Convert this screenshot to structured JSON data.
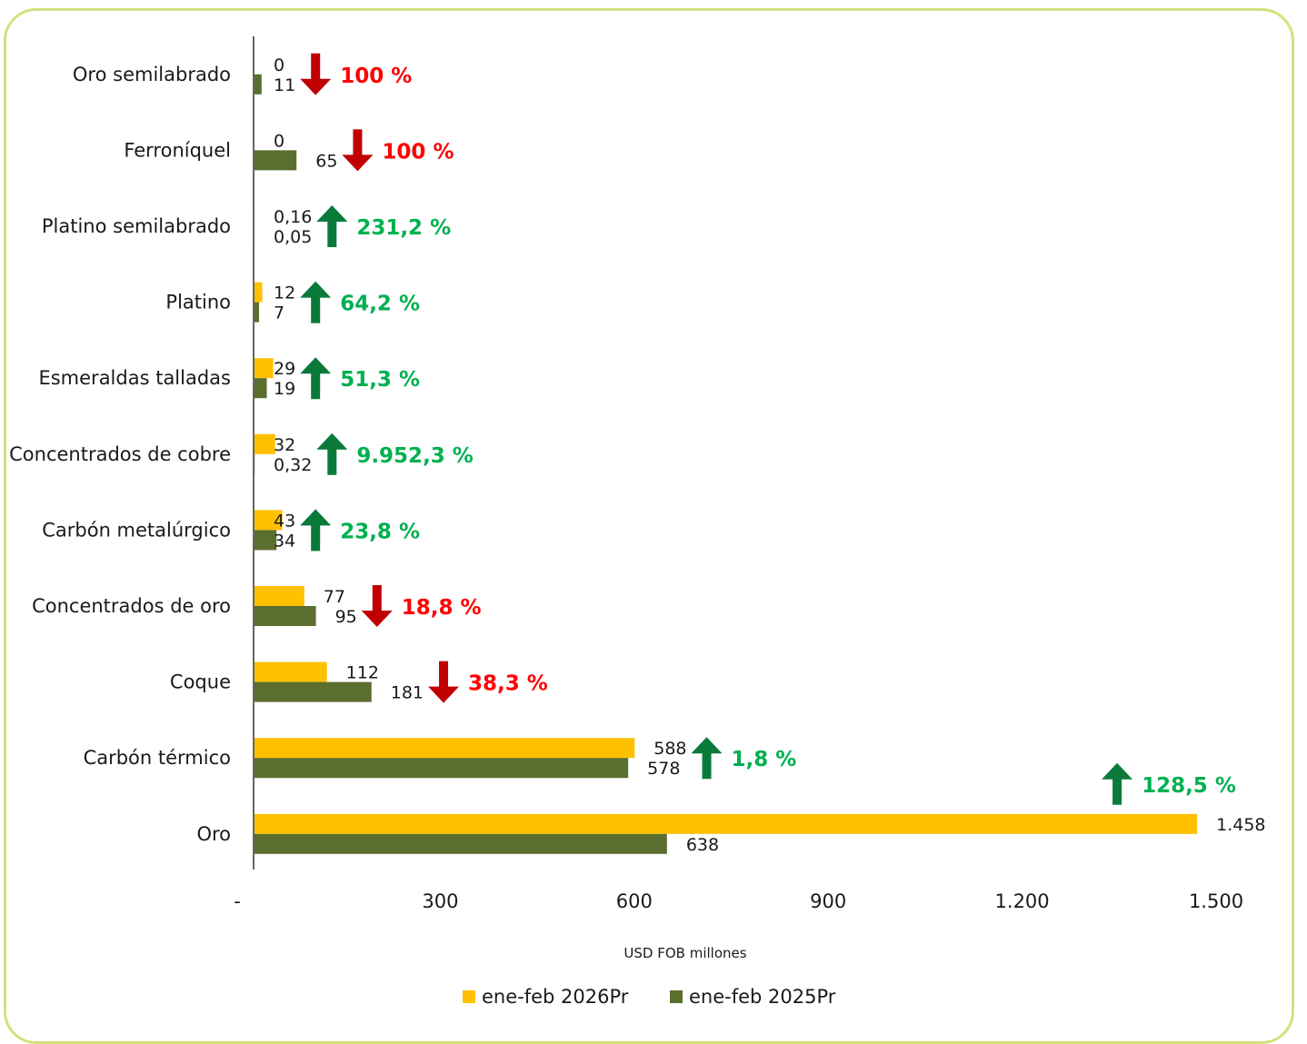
{
  "chart_data": {
    "type": "bar",
    "orientation": "horizontal",
    "categories": [
      "Oro semilabrado",
      "Ferroníquel",
      "Platino semilabrado",
      "Platino",
      "Esmeraldas talladas",
      "Concentrados de cobre",
      "Carbón metalúrgico",
      "Concentrados de oro",
      "Coque",
      "Carbón térmico",
      "Oro"
    ],
    "series": [
      {
        "name": "ene-feb 2026Pr",
        "color": "#ffc000",
        "values": [
          0,
          0,
          0.16,
          12,
          29,
          32,
          43,
          77,
          112,
          588,
          1458
        ],
        "labels": [
          "0",
          "0",
          "0,16",
          "12",
          "29",
          "32",
          "43",
          "77",
          "112",
          "588",
          "1.458"
        ]
      },
      {
        "name": "ene-feb 2025Pr",
        "color": "#5a6e2e",
        "values": [
          11,
          65,
          0.05,
          7,
          19,
          0.32,
          34,
          95,
          181,
          578,
          638
        ],
        "labels": [
          "11",
          "65",
          "0,05",
          "7",
          "19",
          "0,32",
          "34",
          "95",
          "181",
          "578",
          "638"
        ]
      }
    ],
    "changes": [
      {
        "text": "100 %",
        "direction": "down"
      },
      {
        "text": "100 %",
        "direction": "down"
      },
      {
        "text": "231,2 %",
        "direction": "up"
      },
      {
        "text": "64,2 %",
        "direction": "up"
      },
      {
        "text": "51,3 %",
        "direction": "up"
      },
      {
        "text": "9.952,3 %",
        "direction": "up"
      },
      {
        "text": "23,8 %",
        "direction": "up"
      },
      {
        "text": "18,8 %",
        "direction": "down"
      },
      {
        "text": "38,3 %",
        "direction": "down"
      },
      {
        "text": "1,8 %",
        "direction": "up"
      },
      {
        "text": "128,5 %",
        "direction": "up"
      }
    ],
    "xlim": [
      0,
      1500
    ],
    "x_ticks": [
      0,
      300,
      600,
      900,
      1200,
      1500
    ],
    "x_tick_labels": [
      "-",
      "300",
      "600",
      "900",
      "1.200",
      "1.500"
    ],
    "xlabel": "USD FOB millones",
    "ylabel": "",
    "title": "",
    "grid": false,
    "legend": "bottom",
    "colors": {
      "up": "#00b050",
      "up_arrow": "#0a7a3a",
      "down": "#ff0000",
      "down_arrow": "#c00000"
    }
  }
}
